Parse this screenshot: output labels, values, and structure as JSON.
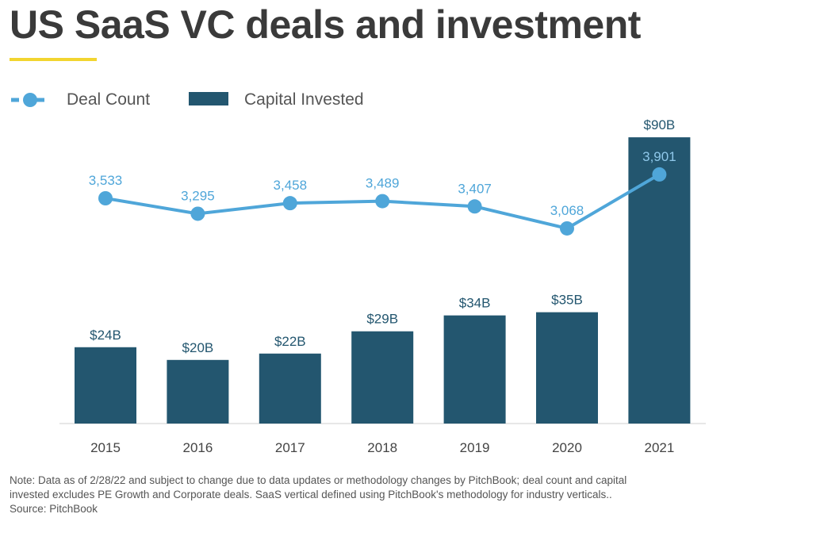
{
  "title": "US SaaS VC deals and investment",
  "colors": {
    "line": "#4fa6d9",
    "bar": "#23566f",
    "accent": "#f2d530"
  },
  "legend": {
    "deal_count": "Deal Count",
    "capital_invested": "Capital Invested"
  },
  "chart_data": {
    "type": "bar",
    "title": "US SaaS VC deals and investment",
    "categories": [
      "2015",
      "2016",
      "2017",
      "2018",
      "2019",
      "2020",
      "2021"
    ],
    "series": [
      {
        "name": "Capital Invested",
        "type": "bar",
        "unit": "$B",
        "values": [
          24,
          20,
          22,
          29,
          34,
          35,
          90
        ],
        "labels": [
          "$24B",
          "$20B",
          "$22B",
          "$29B",
          "$34B",
          "$35B",
          "$90B"
        ]
      },
      {
        "name": "Deal Count",
        "type": "line",
        "values": [
          3533,
          3295,
          3458,
          3489,
          3407,
          3068,
          3901
        ],
        "labels": [
          "3,533",
          "3,295",
          "3,458",
          "3,489",
          "3,407",
          "3,068",
          "3,901"
        ]
      }
    ],
    "legend_position": "top-left",
    "grid": false
  },
  "note": {
    "line1": "Note: Data as of 2/28/22 and subject to change due to data updates or methodology changes by PitchBook; deal count and capital",
    "line2": "invested excludes PE Growth and Corporate deals. SaaS vertical defined using PitchBook's methodology for industry verticals..",
    "line3": "Source: PitchBook"
  }
}
